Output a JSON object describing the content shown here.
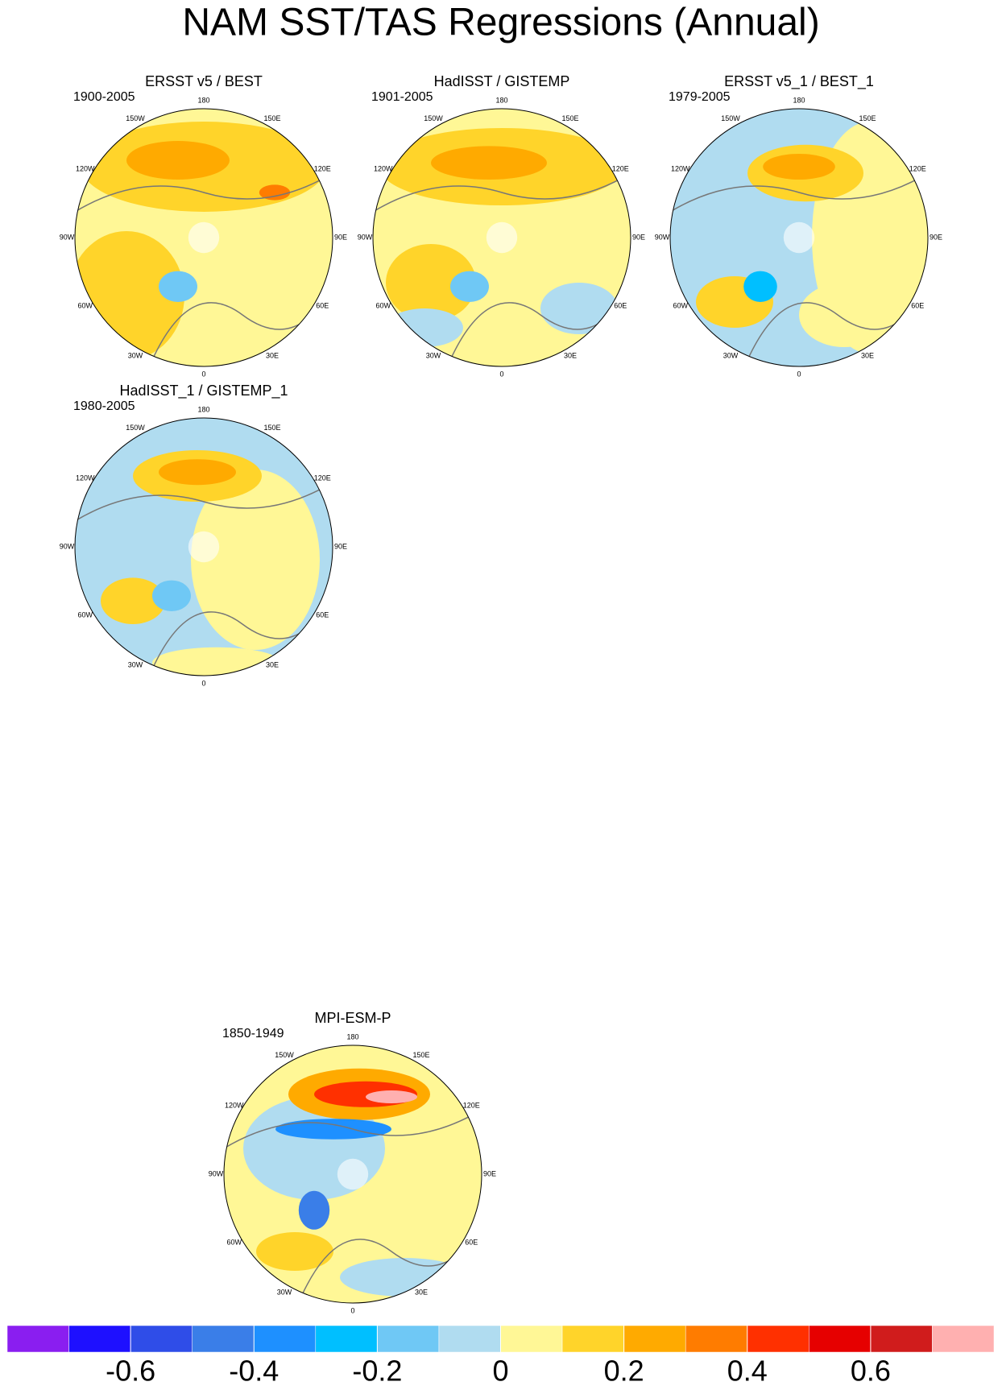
{
  "title": "NAM SST/TAS Regressions (Annual)",
  "lon_labels": [
    "180",
    "150E",
    "120E",
    "90E",
    "60E",
    "30E",
    "0",
    "30W",
    "60W",
    "90W",
    "120W",
    "150W"
  ],
  "panels": [
    {
      "title": "ERSST v5 / BEST",
      "period": "1900-2005"
    },
    {
      "title": "HadISST / GISTEMP",
      "period": "1901-2005"
    },
    {
      "title": "ERSST v5_1 / BEST_1",
      "period": "1979-2005"
    },
    {
      "title": "HadISST_1 / GISTEMP_1",
      "period": "1980-2005"
    },
    {
      "title": "MPI-ESM-P",
      "period": "1850-1949"
    }
  ],
  "colorbar": {
    "colors": [
      "#8a1ef0",
      "#1e10ff",
      "#2f4de8",
      "#3a7ee8",
      "#1e90ff",
      "#00bfff",
      "#6fc8f5",
      "#b0dcf0",
      "#fff796",
      "#ffd42a",
      "#ffaa00",
      "#ff7c00",
      "#ff3000",
      "#e60000",
      "#d01c1c",
      "#ffb0b0"
    ],
    "lim": [
      -0.8,
      0.8
    ],
    "ticks": [
      -0.6,
      -0.4,
      -0.2,
      0,
      0.2,
      0.4,
      0.6
    ]
  }
}
